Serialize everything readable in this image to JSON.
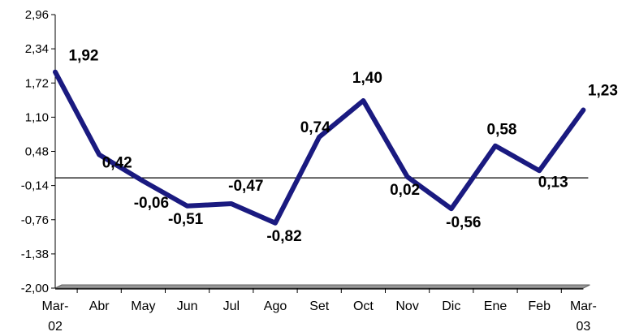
{
  "chart_data": {
    "type": "line",
    "title": "",
    "xlabel": "",
    "ylabel": "",
    "categories": [
      "Mar-02",
      "Abr",
      "May",
      "Jun",
      "Jul",
      "Ago",
      "Set",
      "Oct",
      "Nov",
      "Dic",
      "Ene",
      "Feb",
      "Mar-03"
    ],
    "category_lines": [
      [
        "Mar-",
        "02"
      ],
      [
        "Abr"
      ],
      [
        "May"
      ],
      [
        "Jun"
      ],
      [
        "Jul"
      ],
      [
        "Ago"
      ],
      [
        "Set"
      ],
      [
        "Oct"
      ],
      [
        "Nov"
      ],
      [
        "Dic"
      ],
      [
        "Ene"
      ],
      [
        "Feb"
      ],
      [
        "Mar-",
        "03"
      ]
    ],
    "series": [
      {
        "values": [
          1.92,
          0.42,
          -0.06,
          -0.51,
          -0.47,
          -0.82,
          0.74,
          1.4,
          0.02,
          -0.56,
          0.58,
          0.13,
          1.23
        ],
        "labels": [
          "1,92",
          "0,42",
          "-0,06",
          "-0,51",
          "-0,47",
          "-0,82",
          "0,74",
          "1,40",
          "0,02",
          "-0,56",
          "0,58",
          "0,13",
          "1,23"
        ],
        "color": "#1a1a80"
      }
    ],
    "y_ticks": [
      -2.0,
      -1.38,
      -0.76,
      -0.14,
      0.48,
      1.1,
      1.72,
      2.34,
      2.96
    ],
    "y_tick_labels": [
      "-2,00",
      "-1,38",
      "-0,76",
      "-0,14",
      "0,48",
      "1,10",
      "1,72",
      "2,34",
      "2,96"
    ],
    "ylim": [
      -2.0,
      2.96
    ],
    "grid": false,
    "legend": "none",
    "zero_line": true
  }
}
